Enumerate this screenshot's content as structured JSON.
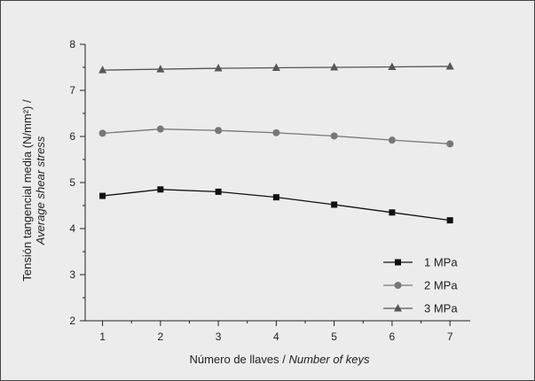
{
  "chart_data": {
    "type": "line",
    "x": [
      1,
      2,
      3,
      4,
      5,
      6,
      7
    ],
    "xlim": [
      0.7,
      7.35
    ],
    "ylim": [
      2,
      8
    ],
    "xticks": [
      1,
      2,
      3,
      4,
      5,
      6,
      7
    ],
    "yticks": [
      2,
      3,
      4,
      5,
      6,
      7,
      8
    ],
    "xlabel": "Número de llaves / ",
    "xlabel_italic": "Number of keys",
    "ylabel": "Tensión tangencial media (N/mm²) /",
    "ylabel_italic": "Average shear stress",
    "legend_position": "bottom-right",
    "grid": false,
    "series": [
      {
        "name": "1 MPa",
        "color": "#111111",
        "marker": "square",
        "values": [
          4.71,
          4.85,
          4.8,
          4.68,
          4.52,
          4.35,
          4.18
        ]
      },
      {
        "name": "2 MPa",
        "color": "#777777",
        "marker": "circle",
        "values": [
          6.07,
          6.16,
          6.13,
          6.08,
          6.01,
          5.92,
          5.84
        ]
      },
      {
        "name": "3 MPa",
        "color": "#555555",
        "marker": "triangle",
        "values": [
          7.44,
          7.46,
          7.48,
          7.49,
          7.5,
          7.51,
          7.52
        ]
      }
    ]
  }
}
